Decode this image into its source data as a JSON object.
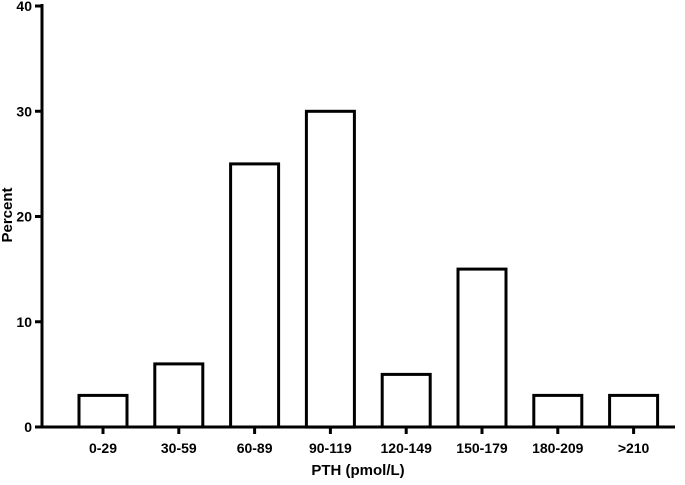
{
  "chart_data": {
    "type": "bar",
    "categories": [
      "0-29",
      "30-59",
      "60-89",
      "90-119",
      "120-149",
      "150-179",
      "180-209",
      ">210"
    ],
    "values": [
      3,
      6,
      25,
      30,
      5,
      15,
      3,
      3
    ],
    "title": "",
    "xlabel": "PTH (pmol/L)",
    "ylabel": "Percent",
    "ylim": [
      0,
      40
    ],
    "yticks": [
      0,
      10,
      20,
      30,
      40
    ],
    "grid": false,
    "bar_fill": "#ffffff",
    "bar_stroke": "#000000"
  }
}
